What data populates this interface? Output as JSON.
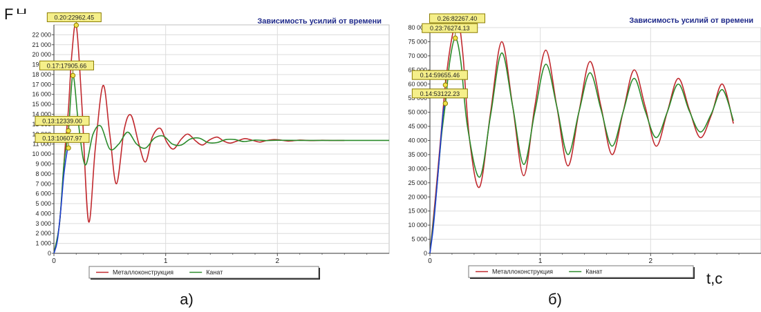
{
  "page": {
    "y_axis_caption": "F,H",
    "x_axis_caption": "t,c",
    "subfigure_labels": [
      "а)",
      "б)"
    ]
  },
  "chart_data": [
    {
      "type": "line",
      "title": "Зависимость усилий от времени",
      "xlabel": "",
      "ylabel": "",
      "xlim": [
        0,
        3
      ],
      "ylim": [
        0,
        23000
      ],
      "x_ticks": [
        "0",
        "1",
        "2"
      ],
      "y_ticks": [
        "0",
        "1 000",
        "2 000",
        "3 000",
        "4 000",
        "5 000",
        "6 000",
        "7 000",
        "8 000",
        "9 000",
        "10 000",
        "11 000",
        "12 000",
        "13 000",
        "14 000",
        "15 000",
        "16 000",
        "17 000",
        "18 000",
        "19 000",
        "20 000",
        "21 000",
        "22 000"
      ],
      "grid": true,
      "legend_position": "bottom",
      "series": [
        {
          "name": "Металлоконструкция",
          "color": "#c0282d",
          "x": [
            0.0,
            0.05,
            0.1,
            0.13,
            0.16,
            0.2,
            0.25,
            0.31,
            0.37,
            0.44,
            0.5,
            0.56,
            0.63,
            0.69,
            0.76,
            0.82,
            0.88,
            0.95,
            1.01,
            1.07,
            1.14,
            1.2,
            1.27,
            1.33,
            1.39,
            1.46,
            1.52,
            1.58,
            1.65,
            1.71,
            1.77,
            1.84,
            1.9,
            1.97,
            2.03,
            2.1,
            2.2,
            2.3,
            2.4,
            2.5,
            2.6
          ],
          "values": [
            0,
            3000,
            10607,
            14500,
            20000,
            22962,
            15000,
            3200,
            10500,
            16900,
            12000,
            7000,
            12500,
            13900,
            11000,
            9200,
            11700,
            12600,
            11200,
            10500,
            11500,
            12000,
            11300,
            10900,
            11400,
            11700,
            11300,
            11100,
            11350,
            11550,
            11400,
            11200,
            11350,
            11450,
            11400,
            11300,
            11400,
            11350,
            11380,
            11360,
            11370
          ]
        },
        {
          "name": "Канат",
          "color": "#2a8a2a",
          "x": [
            0.0,
            0.05,
            0.09,
            0.13,
            0.17,
            0.22,
            0.28,
            0.35,
            0.42,
            0.5,
            0.58,
            0.66,
            0.74,
            0.82,
            0.9,
            0.98,
            1.06,
            1.14,
            1.22,
            1.3,
            1.38,
            1.46,
            1.54,
            1.62,
            1.7,
            1.8,
            1.9,
            2.0,
            2.2,
            2.4,
            2.6,
            2.8,
            3.0
          ],
          "values": [
            0,
            3000,
            9000,
            12339,
            17905,
            13000,
            8900,
            12000,
            12800,
            10500,
            11000,
            12200,
            11000,
            10600,
            11600,
            11800,
            11000,
            10900,
            11500,
            11600,
            11150,
            11150,
            11450,
            11450,
            11250,
            11400,
            11350,
            11380,
            11370,
            11370,
            11370,
            11370,
            11370
          ]
        },
        {
          "name": "",
          "color": "#1e3fd0",
          "x": [
            0.0,
            0.03,
            0.06,
            0.09,
            0.12,
            0.13
          ],
          "values": [
            0,
            1200,
            4200,
            8000,
            10400,
            10607
          ]
        }
      ],
      "annotations": [
        {
          "text": "0.20:22962.45",
          "x": 0.2,
          "y": 22962
        },
        {
          "text": "0.17:17905.66",
          "x": 0.17,
          "y": 17905
        },
        {
          "text": "0.13:12339.00",
          "x": 0.13,
          "y": 12339
        },
        {
          "text": "0.13:10607.97",
          "x": 0.13,
          "y": 10607
        }
      ]
    },
    {
      "type": "line",
      "title": "Зависимость усилий от времени",
      "xlabel": "",
      "ylabel": "",
      "xlim": [
        0,
        3
      ],
      "ylim": [
        0,
        80000
      ],
      "x_ticks": [
        "0",
        "1",
        "2"
      ],
      "y_ticks": [
        "0",
        "5 000",
        "10 000",
        "15 000",
        "20 000",
        "25 000",
        "30 000",
        "35 000",
        "40 000",
        "45 000",
        "50 000",
        "55 000",
        "60 000",
        "65 000",
        "70 000",
        "75 000",
        "80 000"
      ],
      "grid": true,
      "legend_position": "bottom",
      "series": [
        {
          "name": "Металлоконструкция",
          "color": "#c0282d",
          "x": [
            0.0,
            0.05,
            0.1,
            0.14,
            0.18,
            0.22,
            0.26,
            0.3,
            0.36,
            0.45,
            0.55,
            0.65,
            0.75,
            0.85,
            0.95,
            1.05,
            1.15,
            1.25,
            1.35,
            1.45,
            1.55,
            1.65,
            1.75,
            1.85,
            1.95,
            2.05,
            2.15,
            2.25,
            2.35,
            2.45,
            2.55,
            2.65,
            2.75
          ],
          "values": [
            0,
            20000,
            42000,
            59655,
            72000,
            80000,
            82267,
            70000,
            40000,
            23500,
            50000,
            75000,
            52000,
            27500,
            52000,
            72000,
            52000,
            31000,
            50000,
            68000,
            52000,
            35000,
            50000,
            65000,
            52000,
            38000,
            50000,
            62000,
            51000,
            41000,
            49000,
            60000,
            46000
          ]
        },
        {
          "name": "Канат",
          "color": "#2a8a2a",
          "x": [
            0.0,
            0.05,
            0.1,
            0.14,
            0.18,
            0.23,
            0.28,
            0.34,
            0.45,
            0.55,
            0.65,
            0.75,
            0.85,
            0.95,
            1.05,
            1.15,
            1.25,
            1.35,
            1.45,
            1.55,
            1.65,
            1.75,
            1.85,
            1.95,
            2.05,
            2.15,
            2.25,
            2.35,
            2.45,
            2.55,
            2.65,
            2.75
          ],
          "values": [
            0,
            18000,
            40000,
            53122,
            68000,
            76274,
            68000,
            45000,
            27000,
            49000,
            71000,
            52000,
            31500,
            50000,
            67000,
            52000,
            35000,
            50000,
            64000,
            51000,
            38000,
            50000,
            62000,
            50500,
            41000,
            50000,
            60000,
            50500,
            43000,
            49500,
            58000,
            47000
          ]
        },
        {
          "name": "",
          "color": "#1e3fd0",
          "x": [
            0.0,
            0.03,
            0.06,
            0.09,
            0.12,
            0.14
          ],
          "values": [
            0,
            9000,
            22000,
            36000,
            50000,
            53122
          ]
        }
      ],
      "annotations": [
        {
          "text": "0.26:82267.40",
          "x": 0.26,
          "y": 82267
        },
        {
          "text": "0.23:76274.13",
          "x": 0.23,
          "y": 76274
        },
        {
          "text": "0.14:59655.46",
          "x": 0.14,
          "y": 59655
        },
        {
          "text": "0.14:53122.23",
          "x": 0.14,
          "y": 53122
        }
      ]
    }
  ]
}
